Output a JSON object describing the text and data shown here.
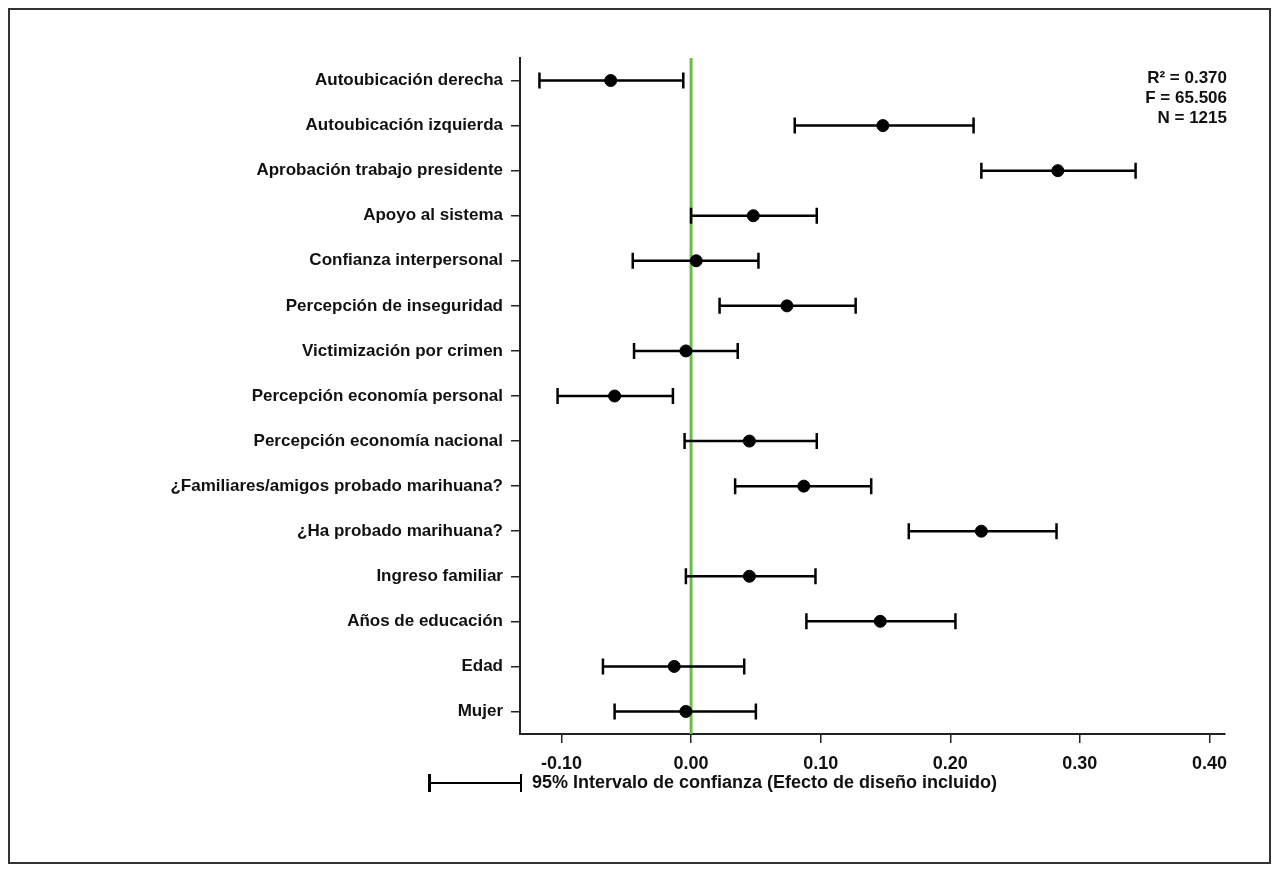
{
  "chart_data": {
    "type": "scatter",
    "orientation": "horizontal",
    "categories": [
      "Autoubicación derecha",
      "Autoubicación izquierda",
      "Aprobación trabajo presidente",
      "Apoyo al sistema",
      "Confianza interpersonal",
      "Percepción de inseguridad",
      "Victimización por crimen",
      "Percepción economía personal",
      "Percepción economía nacional",
      "¿Familiares/amigos probado marihuana?",
      "¿Ha probado marihuana?",
      "Ingreso familiar",
      "Años de educación",
      "Edad",
      "Mujer"
    ],
    "values": [
      -0.062,
      0.148,
      0.283,
      0.048,
      0.004,
      0.074,
      -0.004,
      -0.059,
      0.045,
      0.087,
      0.224,
      0.045,
      0.146,
      -0.013,
      -0.004
    ],
    "errors": [
      [
        -0.117,
        -0.006
      ],
      [
        0.08,
        0.218
      ],
      [
        0.224,
        0.343
      ],
      [
        0.0,
        0.097
      ],
      [
        -0.045,
        0.052
      ],
      [
        0.022,
        0.127
      ],
      [
        -0.044,
        0.036
      ],
      [
        -0.103,
        -0.014
      ],
      [
        -0.005,
        0.097
      ],
      [
        0.034,
        0.139
      ],
      [
        0.168,
        0.282
      ],
      [
        -0.004,
        0.096
      ],
      [
        0.089,
        0.204
      ],
      [
        -0.068,
        0.041
      ],
      [
        -0.059,
        0.05
      ]
    ],
    "color": "#000000",
    "marker": "circle",
    "xlim": [
      -0.132,
      0.412
    ],
    "xticks": [
      {
        "value": -0.1,
        "label": "-0.10"
      },
      {
        "value": 0,
        "label": "0.00"
      },
      {
        "value": 0.1,
        "label": "0.10"
      },
      {
        "value": 0.2,
        "label": "0.20"
      },
      {
        "value": 0.3,
        "label": "0.30"
      },
      {
        "value": 0.4,
        "label": "0.40"
      }
    ],
    "ref_lines": [
      {
        "axis": "x",
        "value": 0,
        "color": "#6cbd45"
      }
    ],
    "grid": false,
    "annotations": [
      "R² = 0.370",
      "F = 65.506",
      "N = 1215",
      "95% Intervalo de confianza (Efecto de diseño incluido)"
    ]
  }
}
